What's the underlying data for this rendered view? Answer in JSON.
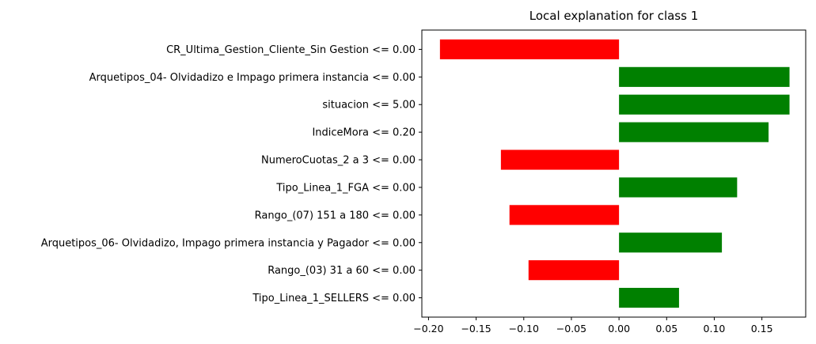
{
  "chart_data": {
    "type": "bar",
    "orientation": "horizontal",
    "title": "Local explanation for class 1",
    "xlabel": "",
    "ylabel": "",
    "xlim": [
      -0.207,
      0.196
    ],
    "x_ticks": [
      -0.2,
      -0.15,
      -0.1,
      -0.05,
      0.0,
      0.05,
      0.1,
      0.15
    ],
    "x_tick_labels": [
      "−0.20",
      "−0.15",
      "−0.10",
      "−0.05",
      "0.00",
      "0.05",
      "0.10",
      "0.15"
    ],
    "grid": false,
    "legend": "none",
    "colors": {
      "negative": "#ff0000",
      "positive": "#008000"
    },
    "categories": [
      "CR_Ultima_Gestion_Cliente_Sin Gestion <= 0.00",
      "Arquetipos_04- Olvidadizo e Impago primera instancia <= 0.00",
      "situacion <= 5.00",
      "IndiceMora <= 0.20",
      "NumeroCuotas_2 a 3 <= 0.00",
      "Tipo_Linea_1_FGA <= 0.00",
      "Rango_(07) 151 a 180 <= 0.00",
      "Arquetipos_06- Olvidadizo, Impago primera instancia y Pagador <= 0.00",
      "Rango_(03) 31 a 60 <= 0.00",
      "Tipo_Linea_1_SELLERS <= 0.00"
    ],
    "values": [
      -0.188,
      0.179,
      0.179,
      0.157,
      -0.124,
      0.124,
      -0.115,
      0.108,
      -0.095,
      0.063
    ]
  }
}
